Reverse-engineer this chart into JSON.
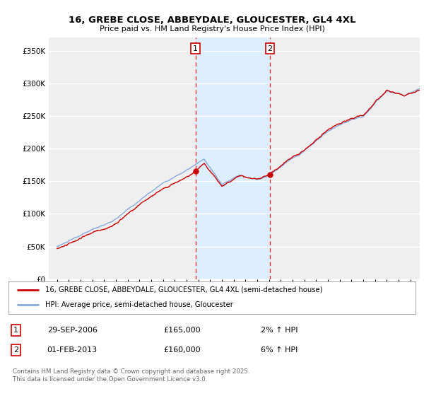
{
  "title_line1": "16, GREBE CLOSE, ABBEYDALE, GLOUCESTER, GL4 4XL",
  "title_line2": "Price paid vs. HM Land Registry's House Price Index (HPI)",
  "legend_label1": "16, GREBE CLOSE, ABBEYDALE, GLOUCESTER, GL4 4XL (semi-detached house)",
  "legend_label2": "HPI: Average price, semi-detached house, Gloucester",
  "purchase1_label": "29-SEP-2006",
  "purchase1_price": 165000,
  "purchase1_hpi": "2% ↑ HPI",
  "purchase1_year": 2006.75,
  "purchase2_label": "01-FEB-2013",
  "purchase2_price": 160000,
  "purchase2_hpi": "6% ↑ HPI",
  "purchase2_year": 2013.08,
  "ytick_values": [
    0,
    50000,
    100000,
    150000,
    200000,
    250000,
    300000,
    350000
  ],
  "ymax": 370000,
  "xmin": 1994.3,
  "xmax": 2025.8,
  "bg_color": "#ffffff",
  "plot_bg_color": "#efefef",
  "shade_color": "#ddeeff",
  "line_color_sold": "#cc0000",
  "line_color_hpi": "#88aadd",
  "vline_color": "#ee3333",
  "grid_color": "#ffffff",
  "footer_text": "Contains HM Land Registry data © Crown copyright and database right 2025.\nThis data is licensed under the Open Government Licence v3.0."
}
